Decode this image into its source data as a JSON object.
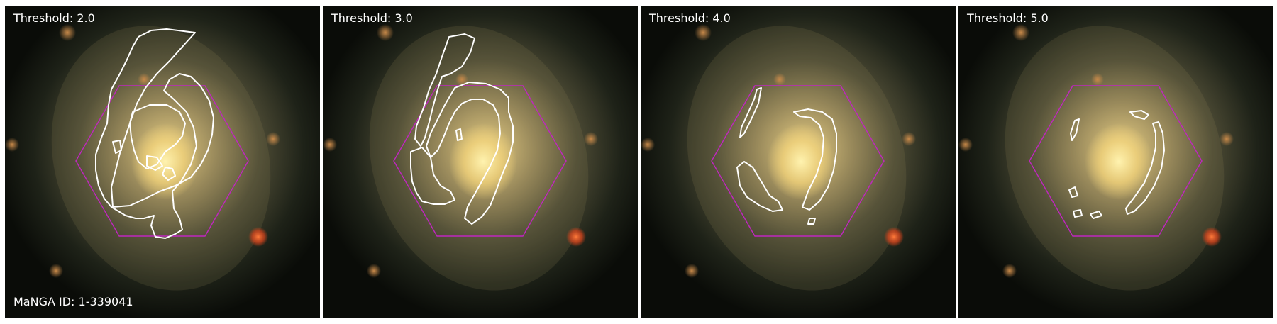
{
  "panels": [
    {
      "threshold_label": "Threshold: 2.0"
    },
    {
      "threshold_label": "Threshold: 3.0"
    },
    {
      "threshold_label": "Threshold: 4.0"
    },
    {
      "threshold_label": "Threshold: 5.0"
    }
  ],
  "manga_id_label": "MaNGA ID: 1-339041",
  "colors": {
    "background": "#ffffff",
    "contour": "#ffffff",
    "hexagon": "#c026c0",
    "galaxy_core": "#ffe28a",
    "star": "#ff5a1e"
  }
}
